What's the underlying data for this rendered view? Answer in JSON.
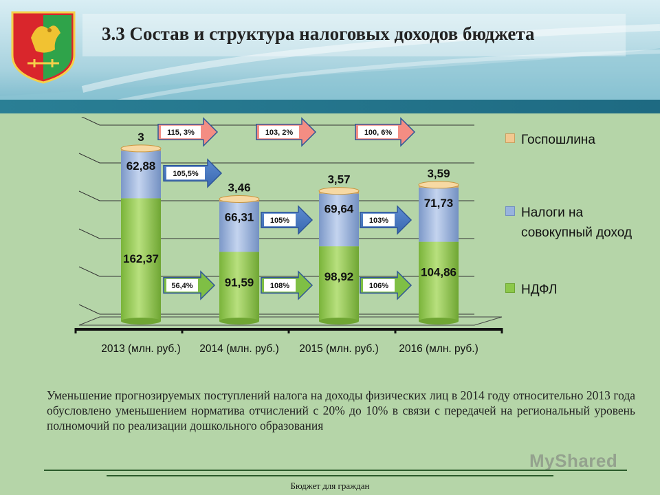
{
  "title": "3.3 Состав и структура налоговых доходов бюджета",
  "colors": {
    "ndfl": "#8cc84a",
    "sovokupny": "#98b3dd",
    "gosposhlina": "#f2c890",
    "arrow": "#4a78c0"
  },
  "chart_data": {
    "type": "bar",
    "stacked": true,
    "categories": [
      "2013 (млн. руб.)",
      "2014 (млн. руб.)",
      "2015 (млн. руб.)",
      "2016 (млн. руб.)"
    ],
    "series": [
      {
        "name": "НДФЛ",
        "values": [
          162.37,
          91.59,
          98.92,
          104.86
        ],
        "labels": [
          "162,37",
          "91,59",
          "98,92",
          "104,86"
        ]
      },
      {
        "name": "Налоги на совокупный доход",
        "values": [
          62.88,
          66.31,
          69.64,
          71.73
        ],
        "labels": [
          "62,88",
          "66,31",
          "69,64",
          "71,73"
        ]
      },
      {
        "name": "Госпошлина",
        "values": [
          3,
          3.46,
          3.57,
          3.59
        ],
        "labels": [
          "3",
          "3,46",
          "3,57",
          "3,59"
        ]
      }
    ],
    "ylim": [
      0,
      250
    ],
    "grid": true,
    "legend": "right",
    "annotations": {
      "gosposhlina_growth": [
        "115, 3%",
        "103, 2%",
        "100, 6%"
      ],
      "sovokupny_growth": [
        "105,5%",
        "105%",
        "103%"
      ],
      "ndfl_growth": [
        "56,4%",
        "108%",
        "106%"
      ]
    }
  },
  "note": "Уменьшение прогнозируемых поступлений налога на доходы физических лиц в 2014 году относительно 2013 года обусловлено уменьшением норматива отчислений с 20% до 10% в связи с передачей на региональный уровень полномочий по реализации дошкольного образования",
  "footer": "Бюджет для граждан",
  "watermark": "MyShared"
}
